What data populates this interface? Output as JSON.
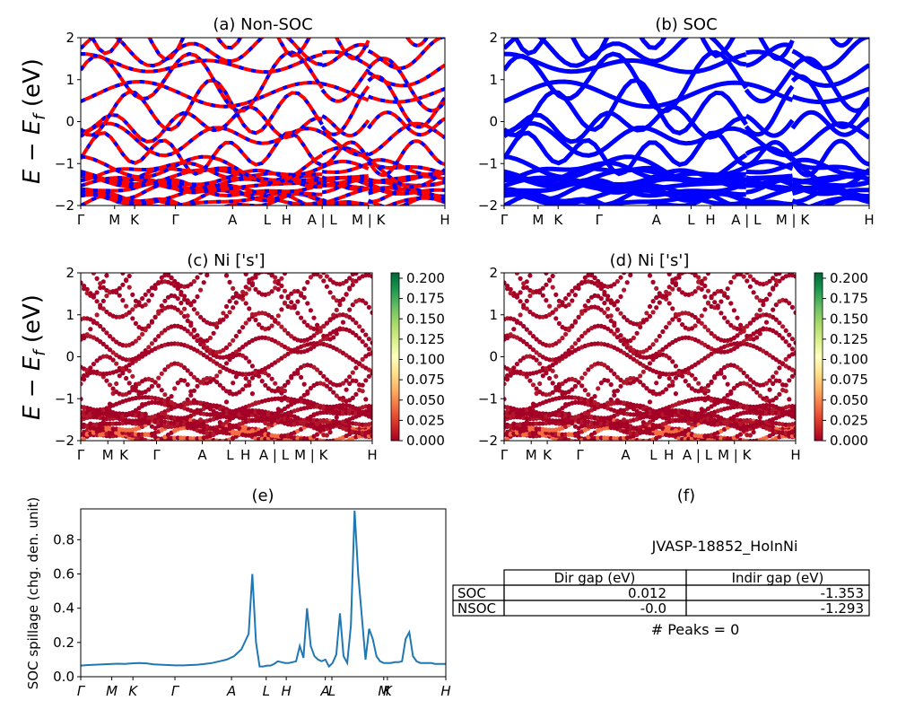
{
  "chart_data": [
    {
      "id": "a",
      "type": "line",
      "title": "(a) Non-SOC",
      "ylabel": "E − E_f (eV)",
      "ylim": [
        -2,
        2
      ],
      "yticks": [
        "2",
        "1",
        "0",
        "−1",
        "−2"
      ],
      "ytick_values": [
        2,
        1,
        0,
        -1,
        -2
      ],
      "xticks": [
        "Γ",
        "M",
        "K",
        "Γ",
        "A",
        "L",
        "H",
        "A | L",
        "M | K",
        "H"
      ],
      "xtick_positions": [
        0,
        0.093,
        0.148,
        0.26,
        0.417,
        0.512,
        0.565,
        0.663,
        0.79,
        1.0
      ],
      "series_colors": [
        "#ff0000",
        "#0000ff"
      ],
      "dashed": true
    },
    {
      "id": "b",
      "type": "line",
      "title": "(b) SOC",
      "ylim": [
        -2,
        2
      ],
      "yticks": [
        "2",
        "1",
        "0",
        "−1",
        "−2"
      ],
      "ytick_values": [
        2,
        1,
        0,
        -1,
        -2
      ],
      "xticks": [
        "Γ",
        "M",
        "K",
        "Γ",
        "A",
        "L",
        "H",
        "A | L",
        "M | K",
        "H"
      ],
      "xtick_positions": [
        0,
        0.093,
        0.148,
        0.26,
        0.417,
        0.512,
        0.565,
        0.663,
        0.79,
        1.0
      ],
      "series_colors": [
        "#0000ff"
      ]
    },
    {
      "id": "c",
      "type": "scatter",
      "title": "(c)  Ni ['s']",
      "ylabel": "E − E_f (eV)",
      "ylim": [
        -2,
        2
      ],
      "yticks": [
        "2",
        "1",
        "0",
        "−1",
        "−2"
      ],
      "ytick_values": [
        2,
        1,
        0,
        -1,
        -2
      ],
      "xticks": [
        "Γ",
        "M",
        "K",
        "Γ",
        "A",
        "L",
        "H",
        "A | L",
        "M | K",
        "H"
      ],
      "xtick_positions": [
        0,
        0.093,
        0.148,
        0.26,
        0.417,
        0.512,
        0.565,
        0.663,
        0.79,
        1.0
      ],
      "colorbar": {
        "min": 0.0,
        "max": 0.2,
        "ticks": [
          "0.200",
          "0.175",
          "0.150",
          "0.125",
          "0.100",
          "0.075",
          "0.050",
          "0.025",
          "0.000"
        ],
        "colormap": "RdYlGn"
      }
    },
    {
      "id": "d",
      "type": "scatter",
      "title": "(d) Ni ['s']",
      "ylim": [
        -2,
        2
      ],
      "yticks": [
        "2",
        "1",
        "0",
        "−1",
        "−2"
      ],
      "ytick_values": [
        2,
        1,
        0,
        -1,
        -2
      ],
      "xticks": [
        "Γ",
        "M",
        "K",
        "Γ",
        "A",
        "L",
        "H",
        "A | L",
        "M | K",
        "H"
      ],
      "xtick_positions": [
        0,
        0.093,
        0.148,
        0.26,
        0.417,
        0.512,
        0.565,
        0.663,
        0.79,
        1.0
      ],
      "colorbar": {
        "min": 0.0,
        "max": 0.2,
        "ticks": [
          "0.200",
          "0.175",
          "0.150",
          "0.125",
          "0.100",
          "0.075",
          "0.050",
          "0.025",
          "0.000"
        ],
        "colormap": "RdYlGn"
      }
    },
    {
      "id": "e",
      "type": "line",
      "title": "(e)",
      "ylabel": "SOC spillage (chg. den. unit)",
      "ylim": [
        0,
        0.98
      ],
      "yticks": [
        "0.8",
        "0.6",
        "0.4",
        "0.2",
        "0.0"
      ],
      "ytick_values": [
        0.8,
        0.6,
        0.4,
        0.2,
        0.0
      ],
      "xticks": [
        "Γ",
        "M",
        "K",
        "Γ",
        "A",
        "L",
        "H",
        "A",
        "L",
        "M",
        "K",
        "H"
      ],
      "xtick_positions": [
        0,
        0.085,
        0.143,
        0.258,
        0.413,
        0.508,
        0.563,
        0.67,
        0.688,
        0.83,
        0.84,
        1.0
      ],
      "color": "#1f77b4",
      "x": [
        0,
        0.02,
        0.04,
        0.06,
        0.08,
        0.1,
        0.12,
        0.14,
        0.16,
        0.18,
        0.2,
        0.22,
        0.24,
        0.26,
        0.28,
        0.3,
        0.32,
        0.34,
        0.36,
        0.38,
        0.4,
        0.42,
        0.44,
        0.46,
        0.47,
        0.48,
        0.49,
        0.5,
        0.51,
        0.52,
        0.53,
        0.54,
        0.55,
        0.56,
        0.57,
        0.58,
        0.59,
        0.6,
        0.61,
        0.62,
        0.63,
        0.64,
        0.65,
        0.66,
        0.67,
        0.68,
        0.69,
        0.7,
        0.71,
        0.72,
        0.73,
        0.74,
        0.75,
        0.76,
        0.77,
        0.78,
        0.79,
        0.8,
        0.81,
        0.82,
        0.83,
        0.84,
        0.85,
        0.86,
        0.87,
        0.88,
        0.89,
        0.9,
        0.91,
        0.92,
        0.93,
        0.94,
        0.95,
        0.96,
        0.97,
        0.98,
        0.99,
        1.0
      ],
      "y": [
        0.065,
        0.068,
        0.07,
        0.072,
        0.074,
        0.076,
        0.075,
        0.078,
        0.08,
        0.078,
        0.072,
        0.07,
        0.068,
        0.066,
        0.066,
        0.068,
        0.07,
        0.075,
        0.08,
        0.09,
        0.1,
        0.12,
        0.16,
        0.25,
        0.6,
        0.2,
        0.06,
        0.06,
        0.065,
        0.065,
        0.075,
        0.09,
        0.085,
        0.08,
        0.08,
        0.085,
        0.09,
        0.18,
        0.11,
        0.4,
        0.18,
        0.12,
        0.1,
        0.09,
        0.1,
        0.06,
        0.08,
        0.13,
        0.37,
        0.12,
        0.08,
        0.3,
        0.97,
        0.6,
        0.35,
        0.1,
        0.28,
        0.22,
        0.12,
        0.09,
        0.08,
        0.08,
        0.08,
        0.085,
        0.085,
        0.09,
        0.22,
        0.26,
        0.12,
        0.09,
        0.08,
        0.08,
        0.08,
        0.08,
        0.075,
        0.075,
        0.075,
        0.075
      ]
    }
  ],
  "panel_f": {
    "title": "(f)",
    "material_id": "JVASP-18852_HoInNi",
    "table": {
      "headers": [
        "",
        "Dir gap (eV)",
        "Indir gap (eV)"
      ],
      "rows": [
        [
          "SOC",
          "0.012",
          "-1.353"
        ],
        [
          "NSOC",
          "-0.0",
          "-1.293"
        ]
      ]
    },
    "peaks_label": "# Peaks = 0"
  }
}
